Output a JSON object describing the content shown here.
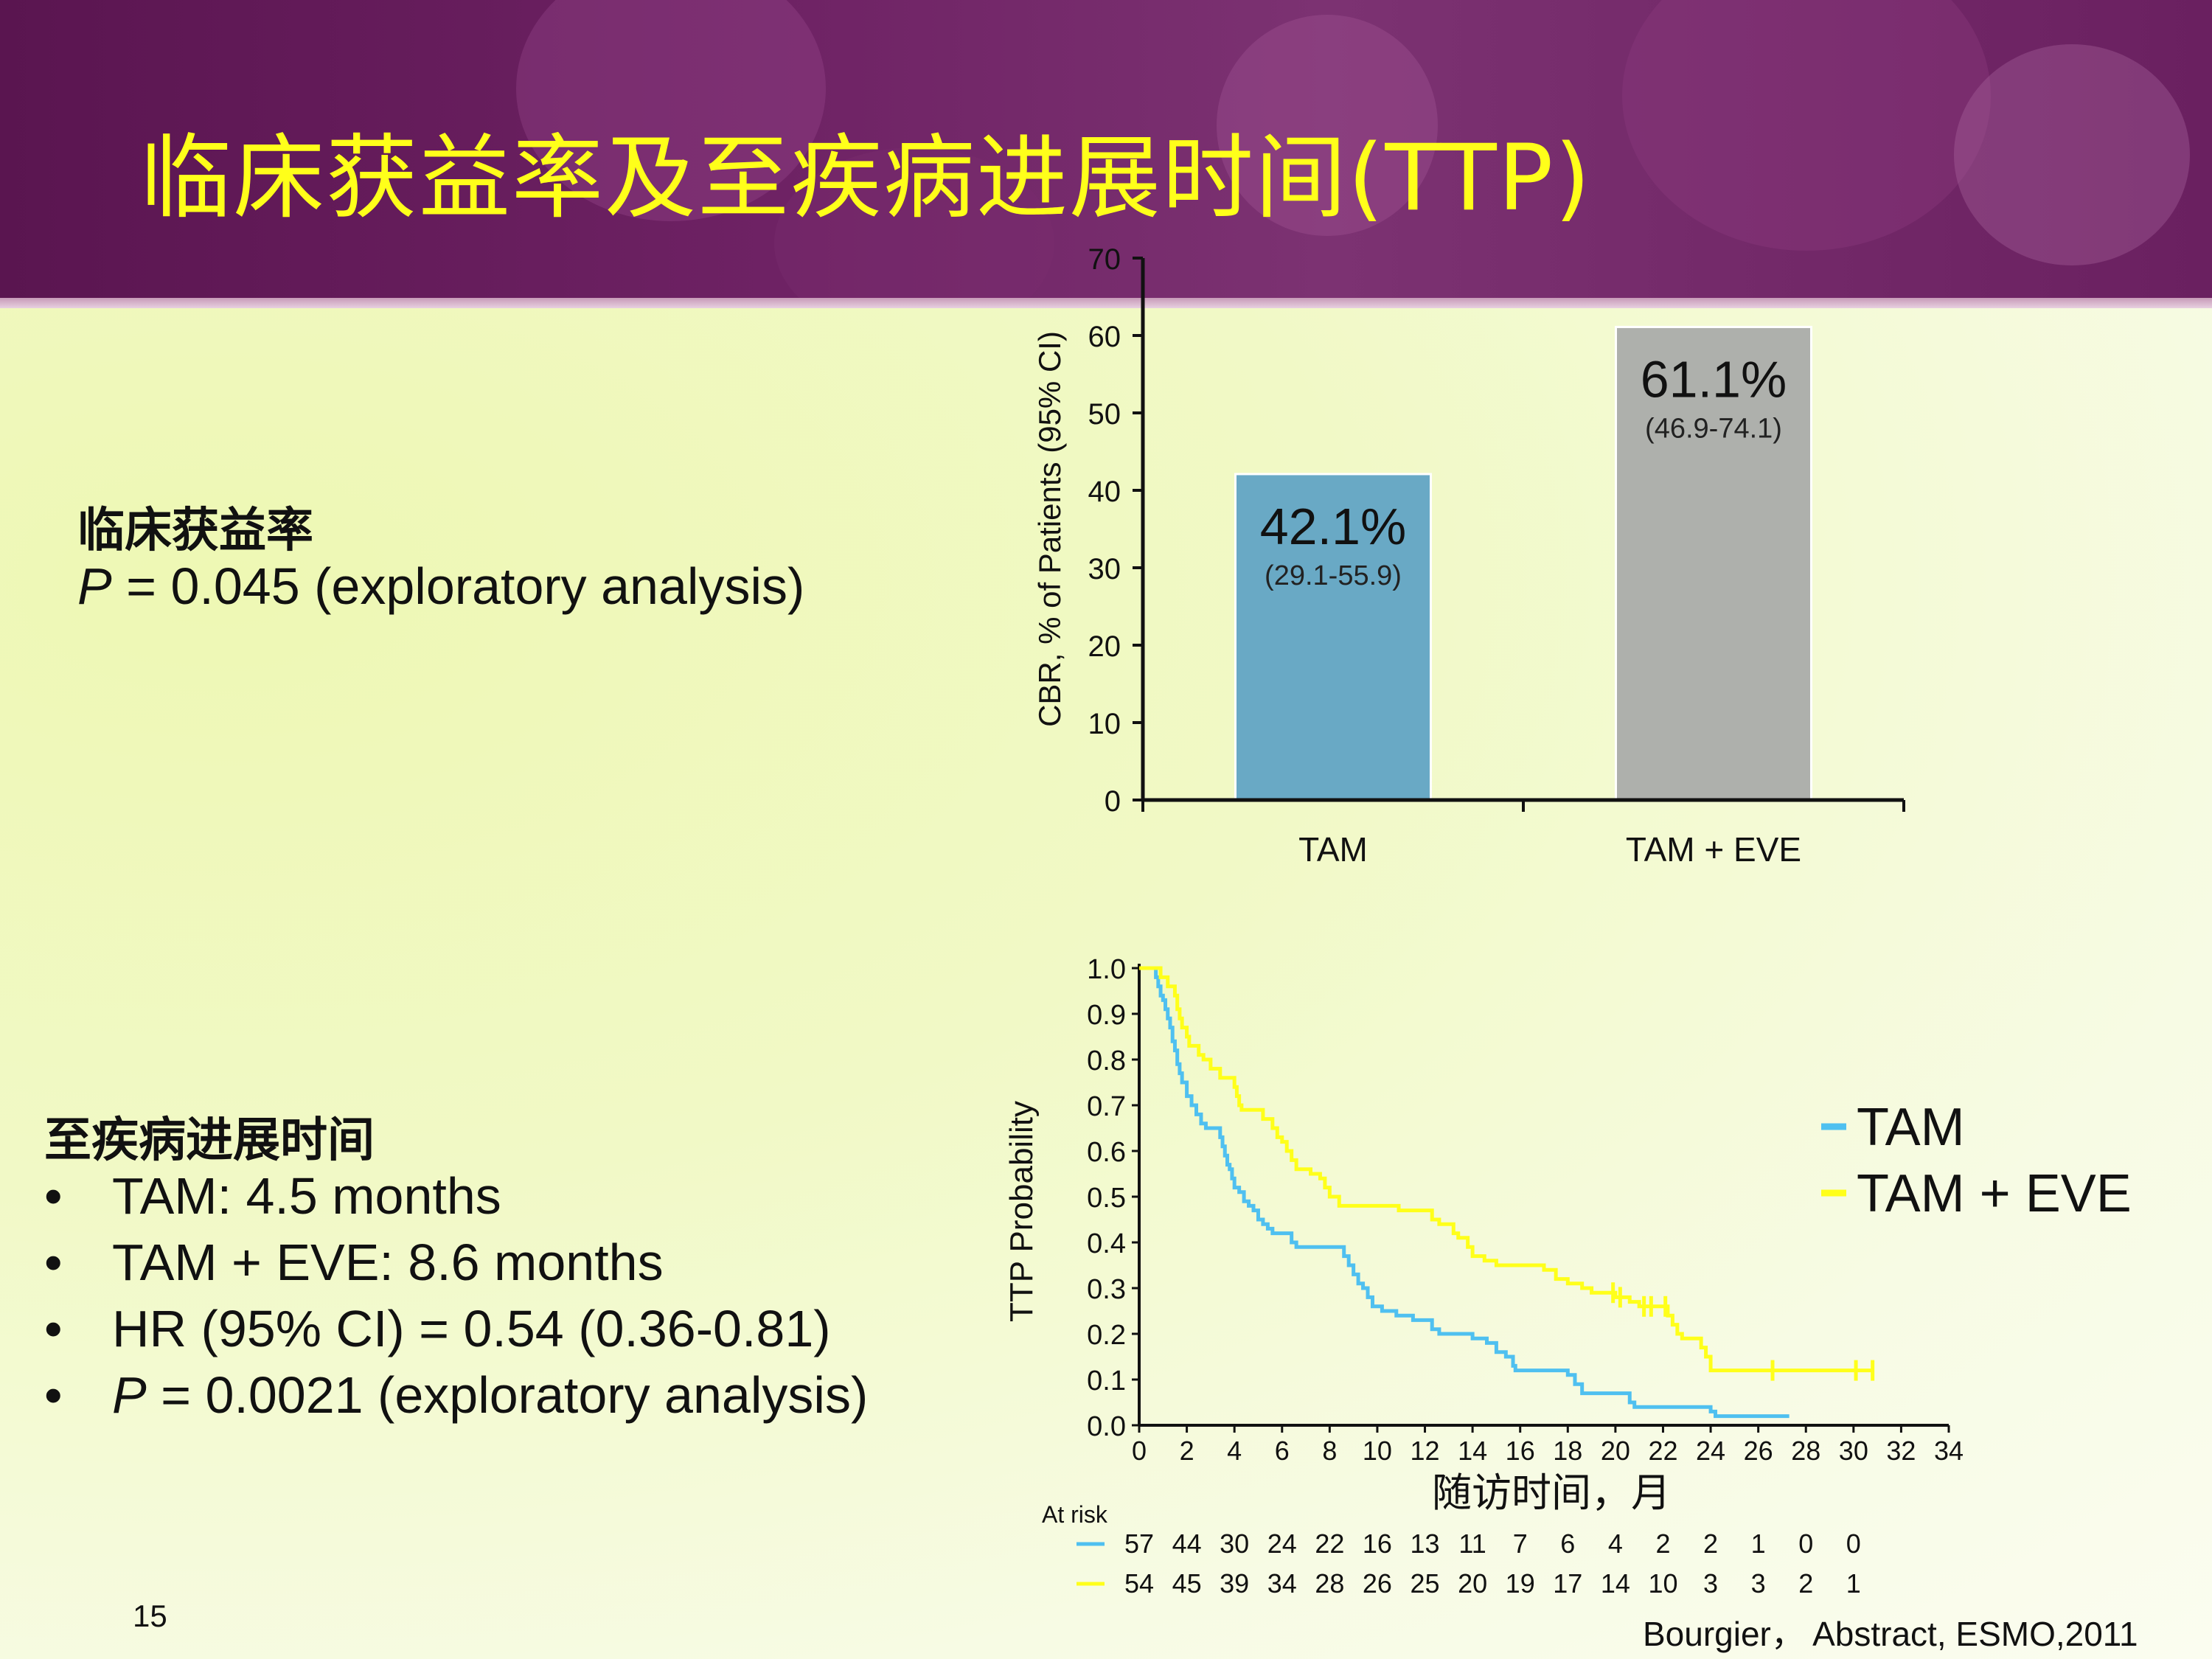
{
  "title": "临床获益率及至疾病进展时间(TTP)",
  "cbr_section": {
    "heading": "临床获益率",
    "p_label": "P",
    "p_rest": " = 0.045 (exploratory analysis)"
  },
  "ttp_section": {
    "heading": "至疾病进展时间",
    "bullets": [
      {
        "italic": "",
        "text": "TAM: 4.5 months"
      },
      {
        "italic": "",
        "text": "TAM + EVE: 8.6 months"
      },
      {
        "italic": "",
        "text": "HR (95% CI) = 0.54 (0.36-0.81)"
      },
      {
        "italic": "P",
        "text": " = 0.0021 (exploratory analysis)"
      }
    ],
    "bullet_glyph": "•"
  },
  "page_number": "15",
  "citation": "Bourgier， Abstract, ESMO,2011",
  "chart_data": [
    {
      "type": "bar",
      "ylabel": "CBR, % of Patients (95% CI)",
      "xlabel": "",
      "ylim": [
        0,
        70
      ],
      "yticks": [
        0,
        10,
        20,
        30,
        40,
        50,
        60,
        70
      ],
      "categories": [
        "TAM",
        "TAM + EVE"
      ],
      "values": [
        42.1,
        61.1
      ],
      "value_labels": [
        "42.1%",
        "61.1%"
      ],
      "ci_labels": [
        "(29.1-55.9)",
        "(46.9-74.1)"
      ],
      "colors": [
        "#69a9c5",
        "#aeb0ac"
      ]
    },
    {
      "type": "line",
      "ylabel": "TTP Probability",
      "xlabel": "随访时间，月",
      "xlim": [
        0,
        34
      ],
      "ylim": [
        0,
        1.0
      ],
      "xticks": [
        0,
        2,
        4,
        6,
        8,
        10,
        12,
        14,
        16,
        18,
        20,
        22,
        24,
        26,
        28,
        30,
        32,
        34
      ],
      "yticks": [
        "0.0",
        "0.1",
        "0.2",
        "0.3",
        "0.4",
        "0.5",
        "0.6",
        "0.7",
        "0.8",
        "0.9",
        "1.0"
      ],
      "legend_position": "right",
      "series": [
        {
          "name": "TAM",
          "color": "#4fc0f0",
          "points": [
            [
              0,
              1.0
            ],
            [
              0.6,
              1.0
            ],
            [
              0.7,
              0.98
            ],
            [
              0.8,
              0.96
            ],
            [
              0.9,
              0.94
            ],
            [
              1.0,
              0.93
            ],
            [
              1.1,
              0.91
            ],
            [
              1.2,
              0.89
            ],
            [
              1.3,
              0.87
            ],
            [
              1.4,
              0.84
            ],
            [
              1.5,
              0.82
            ],
            [
              1.6,
              0.79
            ],
            [
              1.7,
              0.77
            ],
            [
              1.8,
              0.75
            ],
            [
              2.0,
              0.72
            ],
            [
              2.2,
              0.7
            ],
            [
              2.4,
              0.68
            ],
            [
              2.6,
              0.66
            ],
            [
              2.8,
              0.65
            ],
            [
              3.4,
              0.63
            ],
            [
              3.5,
              0.61
            ],
            [
              3.6,
              0.59
            ],
            [
              3.7,
              0.57
            ],
            [
              3.8,
              0.56
            ],
            [
              3.9,
              0.54
            ],
            [
              4.0,
              0.52
            ],
            [
              4.2,
              0.51
            ],
            [
              4.4,
              0.49
            ],
            [
              4.6,
              0.48
            ],
            [
              4.8,
              0.47
            ],
            [
              5.0,
              0.45
            ],
            [
              5.2,
              0.44
            ],
            [
              5.4,
              0.43
            ],
            [
              5.6,
              0.42
            ],
            [
              6.4,
              0.4
            ],
            [
              6.6,
              0.39
            ],
            [
              8.6,
              0.37
            ],
            [
              8.8,
              0.35
            ],
            [
              9.0,
              0.33
            ],
            [
              9.2,
              0.31
            ],
            [
              9.4,
              0.3
            ],
            [
              9.6,
              0.28
            ],
            [
              9.8,
              0.26
            ],
            [
              10.2,
              0.25
            ],
            [
              10.8,
              0.24
            ],
            [
              11.5,
              0.23
            ],
            [
              12.3,
              0.21
            ],
            [
              12.6,
              0.2
            ],
            [
              14.0,
              0.19
            ],
            [
              14.6,
              0.18
            ],
            [
              15.0,
              0.16
            ],
            [
              15.4,
              0.15
            ],
            [
              15.7,
              0.13
            ],
            [
              15.8,
              0.12
            ],
            [
              18.0,
              0.11
            ],
            [
              18.3,
              0.09
            ],
            [
              18.6,
              0.07
            ],
            [
              20.6,
              0.05
            ],
            [
              20.8,
              0.04
            ],
            [
              24.0,
              0.03
            ],
            [
              24.2,
              0.02
            ],
            [
              27.3,
              0.02
            ]
          ]
        },
        {
          "name": "TAM + EVE",
          "color": "#ffff1a",
          "points": [
            [
              0,
              1.0
            ],
            [
              0.8,
              1.0
            ],
            [
              0.9,
              0.98
            ],
            [
              1.2,
              0.96
            ],
            [
              1.5,
              0.94
            ],
            [
              1.6,
              0.91
            ],
            [
              1.7,
              0.89
            ],
            [
              1.8,
              0.87
            ],
            [
              2.0,
              0.85
            ],
            [
              2.1,
              0.83
            ],
            [
              2.5,
              0.81
            ],
            [
              2.7,
              0.8
            ],
            [
              3.0,
              0.78
            ],
            [
              3.4,
              0.76
            ],
            [
              4.0,
              0.74
            ],
            [
              4.1,
              0.72
            ],
            [
              4.2,
              0.7
            ],
            [
              4.3,
              0.69
            ],
            [
              5.2,
              0.67
            ],
            [
              5.6,
              0.65
            ],
            [
              5.8,
              0.63
            ],
            [
              6.0,
              0.62
            ],
            [
              6.2,
              0.6
            ],
            [
              6.4,
              0.58
            ],
            [
              6.6,
              0.56
            ],
            [
              7.2,
              0.55
            ],
            [
              7.6,
              0.54
            ],
            [
              7.8,
              0.52
            ],
            [
              8.0,
              0.5
            ],
            [
              8.4,
              0.48
            ],
            [
              10.9,
              0.47
            ],
            [
              12.3,
              0.45
            ],
            [
              12.6,
              0.44
            ],
            [
              13.2,
              0.42
            ],
            [
              13.4,
              0.41
            ],
            [
              13.8,
              0.39
            ],
            [
              14.0,
              0.37
            ],
            [
              14.5,
              0.36
            ],
            [
              15.0,
              0.35
            ],
            [
              17.0,
              0.34
            ],
            [
              17.5,
              0.32
            ],
            [
              18.0,
              0.31
            ],
            [
              18.6,
              0.3
            ],
            [
              19.0,
              0.29
            ],
            [
              20.0,
              0.28
            ],
            [
              20.6,
              0.27
            ],
            [
              21.0,
              0.26
            ],
            [
              22.0,
              0.26
            ],
            [
              22.2,
              0.24
            ],
            [
              22.4,
              0.22
            ],
            [
              22.6,
              0.2
            ],
            [
              22.8,
              0.19
            ],
            [
              23.4,
              0.19
            ],
            [
              23.6,
              0.17
            ],
            [
              23.8,
              0.15
            ],
            [
              24.0,
              0.12
            ],
            [
              30.8,
              0.12
            ]
          ]
        }
      ],
      "censor_marks": [
        {
          "series": "TAM + EVE",
          "x": [
            19.9,
            20.2,
            21.2,
            21.5,
            22.1,
            26.6,
            30.1,
            30.8
          ]
        }
      ],
      "at_risk_label": "At risk",
      "at_risk_times": [
        0,
        2,
        4,
        6,
        8,
        10,
        12,
        14,
        16,
        18,
        20,
        22,
        24,
        26,
        28,
        30
      ],
      "at_risk": [
        {
          "series": "TAM",
          "values": [
            "57",
            "44",
            "30",
            "24",
            "22",
            "16",
            "13",
            "11",
            "7",
            "6",
            "4",
            "2",
            "2",
            "1",
            "0",
            "0"
          ]
        },
        {
          "series": "TAM + EVE",
          "values": [
            "54",
            "45",
            "39",
            "34",
            "28",
            "26",
            "25",
            "20",
            "19",
            "17",
            "14",
            "10",
            "3",
            "3",
            "2",
            "1"
          ]
        }
      ]
    }
  ]
}
